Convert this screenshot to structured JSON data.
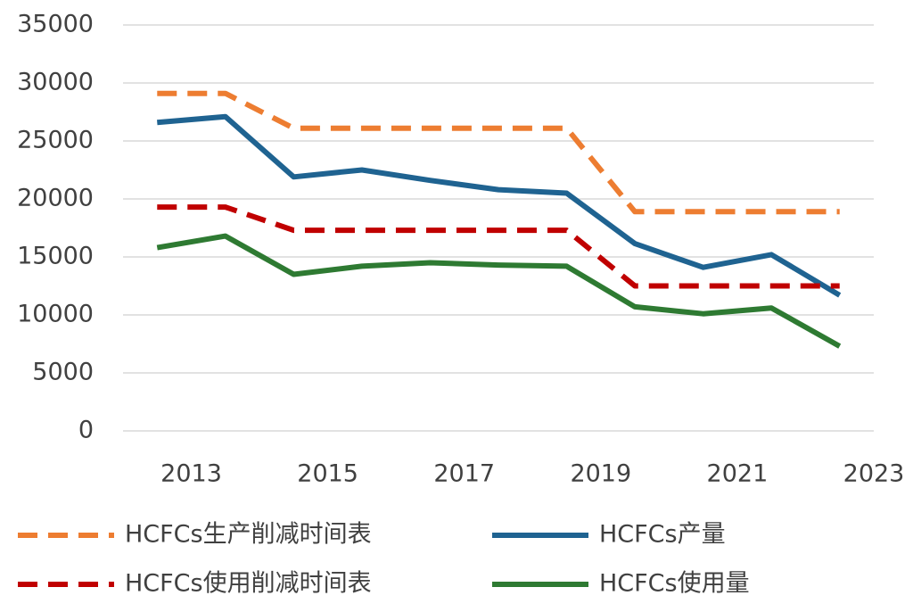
{
  "chart_data": {
    "type": "line",
    "categories": [
      "2013",
      null,
      "2015",
      null,
      "2017",
      null,
      "2019",
      null,
      "2021",
      null,
      "2023"
    ],
    "series": [
      {
        "name": "HCFCs生产削减时间表",
        "color": "#ED7D31",
        "dashed": true,
        "values": [
          29100,
          29100,
          26100,
          26100,
          26100,
          26100,
          26100,
          18900,
          18900,
          18900,
          18900
        ]
      },
      {
        "name": "HCFCs产量",
        "color": "#1F6391",
        "dashed": false,
        "values": [
          26600,
          27100,
          21900,
          22500,
          21600,
          20800,
          20500,
          16150,
          14100,
          15200,
          11700
        ]
      },
      {
        "name": "HCFCs使用削减时间表",
        "color": "#C00000",
        "dashed": true,
        "values": [
          19300,
          19300,
          17300,
          17300,
          17300,
          17300,
          17300,
          12500,
          12500,
          12500,
          12500
        ]
      },
      {
        "name": "HCFCs使用量",
        "color": "#2E7A32",
        "dashed": false,
        "values": [
          15800,
          16800,
          13500,
          14200,
          14500,
          14300,
          14200,
          10700,
          10100,
          10600,
          7300
        ]
      }
    ],
    "ylim": [
      0,
      35000
    ],
    "yticks": [
      0,
      5000,
      10000,
      15000,
      20000,
      25000,
      30000,
      35000
    ],
    "grid": true,
    "legend": "bottom"
  }
}
